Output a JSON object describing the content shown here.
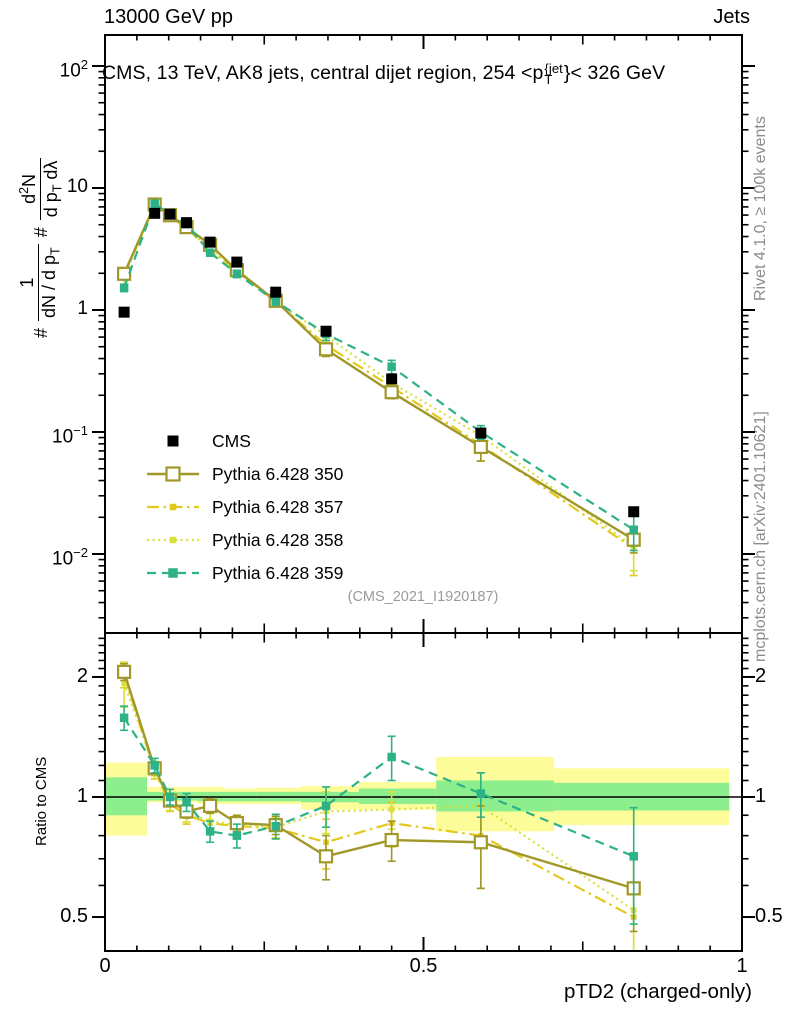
{
  "header": {
    "left": "13000 GeV pp",
    "right": "Jets"
  },
  "title": {
    "pre": "CMS, 13 TeV, AK8 jets, central dijet region, 254 <p",
    "sup": "{jet",
    "sub": "T",
    "post": "}< 326 GeV"
  },
  "ylabel": {
    "hash1": "#",
    "frac1_num": "1",
    "frac1_den_pre": "dN / d p",
    "frac1_den_sub": "T",
    "hash2": "#",
    "frac2_num_pre": "d",
    "frac2_num_sup": "2",
    "frac2_num_post": "N",
    "frac2_den_pre": "d p",
    "frac2_den_sub": "T",
    "frac2_den_post": " dλ"
  },
  "ratio_ylabel": "Ratio to CMS",
  "xlabel": "pTD2 (charged-only)",
  "watermark": "(CMS_2021_I1920187)",
  "side_texts": {
    "top": "Rivet 4.1.0, ≥ 100k events",
    "bottom": "mcplots.cern.ch [arXiv:2401.10621]"
  },
  "colors": {
    "cms": "#000000",
    "p350": "#a09828",
    "p357": "#e3c81e",
    "p358": "#d8e03c",
    "p359": "#2db287",
    "band_yellow": "#fcfc9a",
    "band_green": "#8cee8c",
    "gray_text": "#8c8c8c",
    "frame": "#000000"
  },
  "legend": {
    "items": [
      {
        "label": "CMS",
        "series": "cms"
      },
      {
        "label": "Pythia 6.428 350",
        "series": "p350"
      },
      {
        "label": "Pythia 6.428 357",
        "series": "p357"
      },
      {
        "label": "Pythia 6.428 358",
        "series": "p358"
      },
      {
        "label": "Pythia 6.428 359",
        "series": "p359"
      }
    ]
  },
  "axes": {
    "x": {
      "min": 0,
      "max": 1,
      "ticks": [
        {
          "v": 0,
          "label": "0"
        },
        {
          "v": 0.5,
          "label": "0.5"
        },
        {
          "v": 1,
          "label": "1"
        }
      ],
      "medium": [
        0.25,
        0.75
      ],
      "minor_step": 0.05
    },
    "y_main": {
      "scale": "log",
      "ticks": [
        {
          "v": 100,
          "base": "10",
          "exp": "2"
        },
        {
          "v": 10,
          "base": "10",
          "exp": ""
        },
        {
          "v": 1,
          "base": "1",
          "exp": ""
        },
        {
          "v": 0.1,
          "base": "10",
          "exp": "−1"
        },
        {
          "v": 0.01,
          "base": "10",
          "exp": "−2"
        }
      ]
    },
    "y_ratio": {
      "scale": "log",
      "ticks": [
        {
          "v": 2,
          "label": "2"
        },
        {
          "v": 1,
          "label": "1"
        },
        {
          "v": 0.5,
          "label": "0.5"
        }
      ]
    }
  },
  "chart_data": {
    "type": "line",
    "title": "CMS, 13 TeV, AK8 jets, central dijet region, 254 <pT^jet< 326 GeV",
    "xlabel": "pTD2 (charged-only)",
    "ylog": true,
    "ratio_ylog": true,
    "xlim": [
      0,
      1
    ],
    "ylim_main": [
      0.003,
      170
    ],
    "ylim_ratio": [
      0.41,
      2.55
    ],
    "x": [
      0.03,
      0.078,
      0.102,
      0.128,
      0.165,
      0.207,
      0.268,
      0.347,
      0.45,
      0.59,
      0.83
    ],
    "series": [
      {
        "name": "CMS",
        "key": "cms",
        "marker": "filled-square",
        "marker_size": 11,
        "line": "none",
        "values": [
          0.96,
          6.2,
          6.1,
          5.2,
          3.6,
          2.47,
          1.4,
          0.67,
          0.272,
          0.098,
          0.0222
        ],
        "err_frac": [
          0.07,
          0.03,
          0.03,
          0.03,
          0.03,
          0.03,
          0.03,
          0.04,
          0.045,
          0.05,
          0.06
        ]
      },
      {
        "name": "Pythia 6.428 350",
        "key": "p350",
        "marker": "open-square",
        "marker_size": 12,
        "line": "solid",
        "values": [
          1.98,
          7.32,
          5.98,
          4.78,
          3.42,
          2.12,
          1.19,
          0.476,
          0.212,
          0.0755,
          0.0131
        ],
        "ratio": [
          2.06,
          1.18,
          0.98,
          0.92,
          0.95,
          0.86,
          0.85,
          0.71,
          0.78,
          0.77,
          0.59
        ],
        "ratio_err": [
          0.1,
          0.04,
          0.035,
          0.035,
          0.04,
          0.04,
          0.045,
          0.09,
          0.09,
          0.18,
          0.13
        ]
      },
      {
        "name": "Pythia 6.428 357",
        "key": "p357",
        "marker": "filled-square",
        "marker_size": 5.5,
        "line": "dashdot",
        "values": [
          1.94,
          7.19,
          5.86,
          4.68,
          3.1,
          2.09,
          1.17,
          0.516,
          0.234,
          0.0784,
          0.0111
        ],
        "ratio": [
          2.02,
          1.16,
          0.96,
          0.9,
          0.86,
          0.845,
          0.835,
          0.77,
          0.86,
          0.8,
          0.5
        ],
        "ratio_err": [
          0.14,
          0.05,
          0.04,
          0.045,
          0.05,
          0.05,
          0.05,
          0.11,
          0.11,
          0.21,
          0.2
        ]
      },
      {
        "name": "Pythia 6.428 358",
        "key": "p358",
        "marker": "filled-square",
        "marker_size": 5.5,
        "line": "dotted",
        "values": [
          1.85,
          7.32,
          5.89,
          4.73,
          3.13,
          2.1,
          1.18,
          0.616,
          0.253,
          0.0931,
          0.0115
        ],
        "ratio": [
          1.93,
          1.18,
          0.965,
          0.91,
          0.87,
          0.85,
          0.84,
          0.92,
          0.93,
          0.95,
          0.52
        ],
        "ratio_err": [
          0.25,
          0.05,
          0.04,
          0.045,
          0.05,
          0.05,
          0.05,
          0.11,
          0.1,
          0.2,
          0.19
        ]
      },
      {
        "name": "Pythia 6.428 359",
        "key": "p359",
        "marker": "filled-square",
        "marker_size": 8.5,
        "line": "dashed",
        "values": [
          1.52,
          7.44,
          6.1,
          5.04,
          2.95,
          1.98,
          1.18,
          0.637,
          0.343,
          0.1,
          0.0158
        ],
        "ratio": [
          1.58,
          1.2,
          1.0,
          0.97,
          0.82,
          0.8,
          0.845,
          0.95,
          1.26,
          1.02,
          0.71
        ],
        "ratio_err": [
          0.11,
          0.05,
          0.045,
          0.05,
          0.05,
          0.055,
          0.06,
          0.11,
          0.16,
          0.13,
          0.23
        ]
      }
    ],
    "ratio_reference": 1,
    "ratio_bands": {
      "edges": [
        0,
        0.066,
        0.09,
        0.115,
        0.1465,
        0.186,
        0.2375,
        0.3075,
        0.3985,
        0.52,
        0.705,
        0.98
      ],
      "yellow": [
        [
          0.8,
          1.22
        ],
        [
          0.97,
          1.06
        ],
        [
          0.97,
          1.06
        ],
        [
          0.97,
          1.06
        ],
        [
          0.96,
          1.06
        ],
        [
          0.96,
          1.05
        ],
        [
          0.96,
          1.055
        ],
        [
          0.93,
          1.065
        ],
        [
          0.93,
          1.09
        ],
        [
          0.82,
          1.26
        ],
        [
          0.85,
          1.18
        ]
      ],
      "green": [
        [
          0.9,
          1.12
        ],
        [
          0.98,
          1.03
        ],
        [
          0.98,
          1.03
        ],
        [
          0.98,
          1.03
        ],
        [
          0.975,
          1.03
        ],
        [
          0.975,
          1.03
        ],
        [
          0.975,
          1.03
        ],
        [
          0.97,
          1.03
        ],
        [
          0.96,
          1.05
        ],
        [
          0.92,
          1.1
        ],
        [
          0.925,
          1.085
        ]
      ]
    },
    "legend_position": "upper-left-inside"
  }
}
